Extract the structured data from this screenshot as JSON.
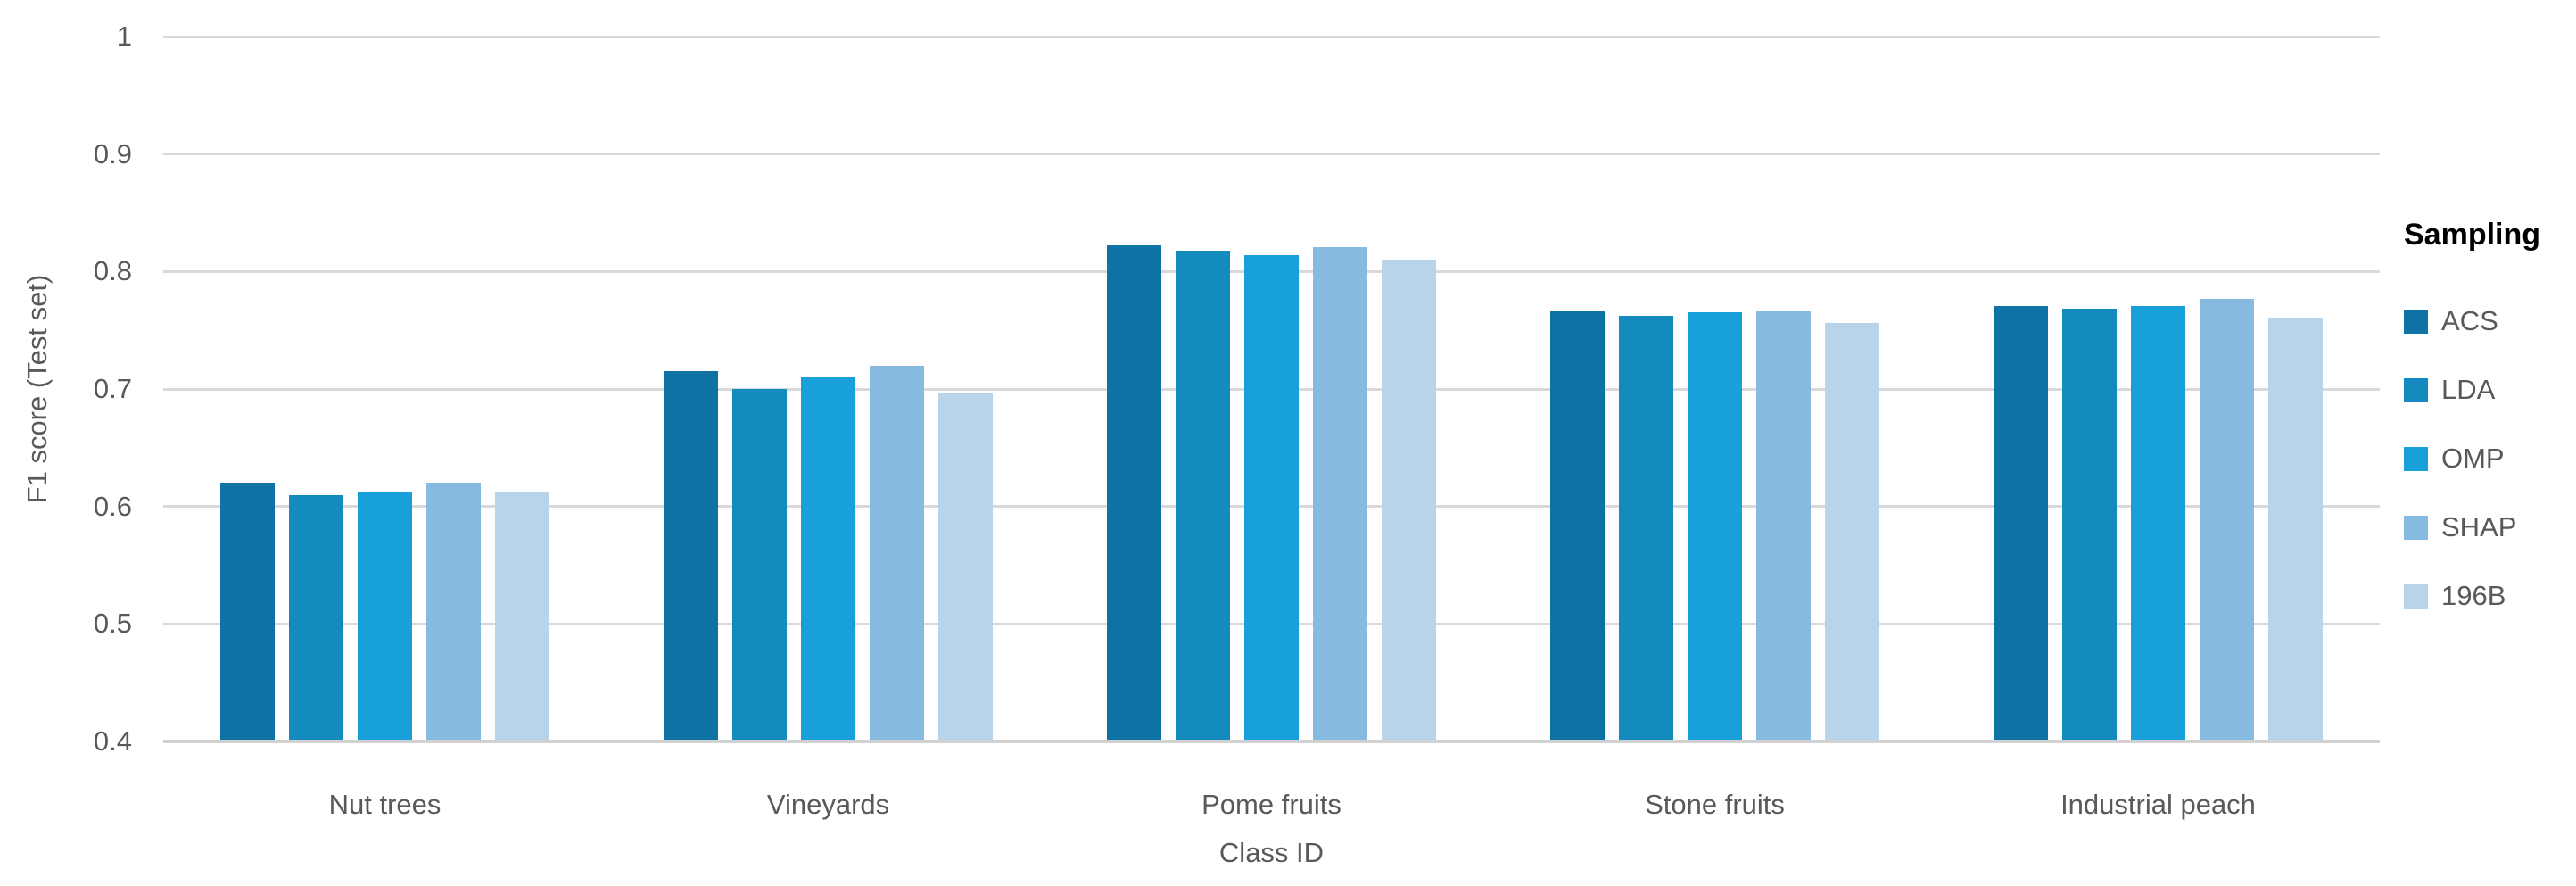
{
  "chart_data": {
    "type": "bar",
    "title": "",
    "xlabel": "Class ID",
    "ylabel": "F1 score (Test set)",
    "ylim": [
      0.4,
      1.0
    ],
    "yticks": [
      "1",
      "0.9",
      "0.8",
      "0.7",
      "0.6",
      "0.5",
      "0.4"
    ],
    "grid": true,
    "legend_title": "Sampling",
    "legend_position": "right",
    "categories": [
      "Nut trees",
      "Vineyards",
      "Pome fruits",
      "Stone fruits",
      "Industrial peach"
    ],
    "series": [
      {
        "name": "ACS",
        "color": "#0f72a5",
        "values": [
          0.62,
          0.715,
          0.822,
          0.766,
          0.771
        ]
      },
      {
        "name": "LDA",
        "color": "#148bbf",
        "values": [
          0.61,
          0.7,
          0.818,
          0.762,
          0.768
        ]
      },
      {
        "name": "OMP",
        "color": "#17a0d9",
        "values": [
          0.613,
          0.711,
          0.814,
          0.765,
          0.771
        ]
      },
      {
        "name": "SHAP",
        "color": "#87badf",
        "values": [
          0.62,
          0.72,
          0.821,
          0.767,
          0.777
        ]
      },
      {
        "name": "196B",
        "color": "#b8d4ea",
        "values": [
          0.613,
          0.696,
          0.81,
          0.756,
          0.761
        ]
      }
    ]
  },
  "colors": {
    "gridline": "#d9d9d9",
    "baseline": "#d1d1d1",
    "axis_text": "#595959",
    "legend_title_text": "#000000"
  }
}
